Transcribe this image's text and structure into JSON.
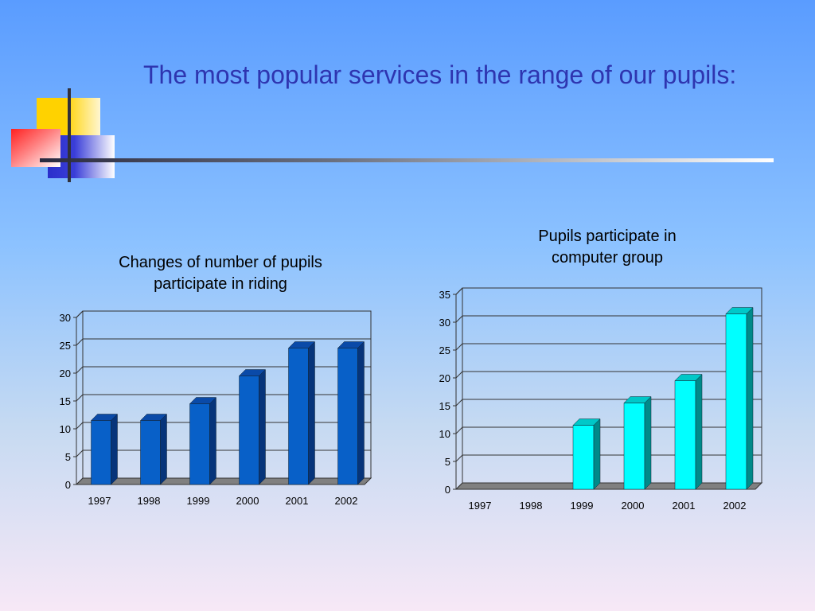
{
  "slide": {
    "title": "The most popular services in the range of our pupils:"
  },
  "chart_data": [
    {
      "type": "bar",
      "title": "Changes of number of pupils participate in riding",
      "title_lines": [
        "Changes of number of pupils",
        "participate in riding"
      ],
      "categories": [
        "1997",
        "1998",
        "1999",
        "2000",
        "2001",
        "2002"
      ],
      "values": [
        11.5,
        11.5,
        14.5,
        19.5,
        24.5,
        24.5
      ],
      "ylim": [
        0,
        30
      ],
      "yticks": [
        0,
        5,
        10,
        15,
        20,
        25,
        30
      ],
      "xlabel": "",
      "ylabel": "",
      "grid": true,
      "colors": {
        "front": "#0860c8",
        "top": "#0a4aa8",
        "side": "#06347a"
      }
    },
    {
      "type": "bar",
      "title": "Pupils participate in computer group",
      "title_lines": [
        "Pupils participate in",
        "computer group"
      ],
      "categories": [
        "1997",
        "1998",
        "1999",
        "2000",
        "2001",
        "2002"
      ],
      "values": [
        0,
        0,
        11.5,
        15.5,
        19.5,
        31.5
      ],
      "ylim": [
        0,
        35
      ],
      "yticks": [
        0,
        5,
        10,
        15,
        20,
        25,
        30,
        35
      ],
      "xlabel": "",
      "ylabel": "",
      "grid": true,
      "colors": {
        "front": "#00ffff",
        "top": "#00c8c8",
        "side": "#008a8a"
      }
    }
  ]
}
